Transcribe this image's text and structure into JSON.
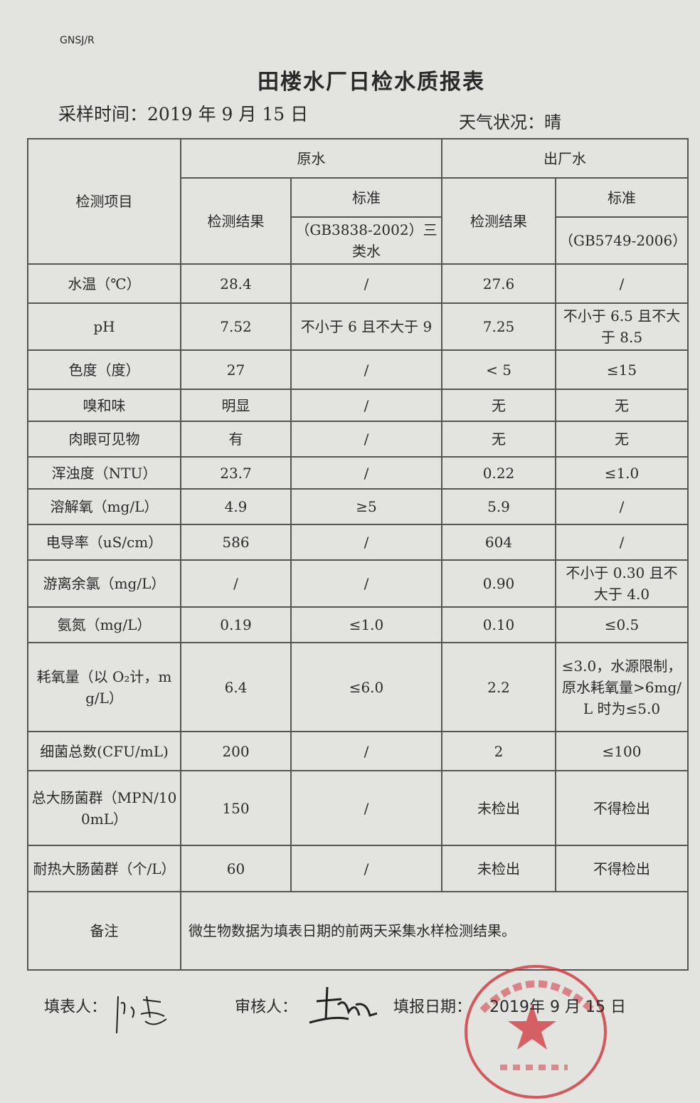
{
  "doc_code": "GNSJ/R",
  "title": "田楼水厂日检水质报表",
  "sampling_time": "采样时间：2019 年 9 月 15 日",
  "weather": "天气状况：晴",
  "table": {
    "header": {
      "item": "检测项目",
      "raw_water": "原水",
      "finished_water": "出厂水",
      "result": "检测结果",
      "standard": "标准",
      "raw_standard_ref": "（GB3838-2002）三类水",
      "finished_standard_ref": "（GB5749-2006）"
    },
    "rows": [
      {
        "item": "水温（℃）",
        "raw": "28.4",
        "raw_std": "/",
        "fin": "27.6",
        "fin_std": "/"
      },
      {
        "item": "pH",
        "raw": "7.52",
        "raw_std": "不小于 6 且不大于 9",
        "fin": "7.25",
        "fin_std": "不小于 6.5 且不大于 8.5"
      },
      {
        "item": "色度（度）",
        "raw": "27",
        "raw_std": "/",
        "fin": "< 5",
        "fin_std": "≤15"
      },
      {
        "item": "嗅和味",
        "raw": "明显",
        "raw_std": "/",
        "fin": "无",
        "fin_std": "无"
      },
      {
        "item": "肉眼可见物",
        "raw": "有",
        "raw_std": "/",
        "fin": "无",
        "fin_std": "无"
      },
      {
        "item": "浑浊度（NTU）",
        "raw": "23.7",
        "raw_std": "/",
        "fin": "0.22",
        "fin_std": "≤1.0"
      },
      {
        "item": "溶解氧（mg/L）",
        "raw": "4.9",
        "raw_std": "≥5",
        "fin": "5.9",
        "fin_std": "/"
      },
      {
        "item": "电导率（uS/cm）",
        "raw": "586",
        "raw_std": "/",
        "fin": "604",
        "fin_std": "/"
      },
      {
        "item": "游离余氯（mg/L）",
        "raw": "/",
        "raw_std": "/",
        "fin": "0.90",
        "fin_std": "不小于 0.30 且不大于 4.0"
      },
      {
        "item": "氨氮（mg/L）",
        "raw": "0.19",
        "raw_std": "≤1.0",
        "fin": "0.10",
        "fin_std": "≤0.5"
      },
      {
        "item": "耗氧量（以 O₂计，mg/L）",
        "raw": "6.4",
        "raw_std": "≤6.0",
        "fin": "2.2",
        "fin_std": "≤3.0，水源限制，原水耗氧量>6mg/L 时为≤5.0"
      },
      {
        "item": "细菌总数(CFU/mL)",
        "raw": "200",
        "raw_std": "/",
        "fin": "2",
        "fin_std": "≤100"
      },
      {
        "item": "总大肠菌群（MPN/100mL）",
        "raw": "150",
        "raw_std": "/",
        "fin": "未检出",
        "fin_std": "不得检出"
      },
      {
        "item": "耐热大肠菌群（个/L）",
        "raw": "60",
        "raw_std": "/",
        "fin": "未检出",
        "fin_std": "不得检出"
      }
    ],
    "remark_label": "备注",
    "remark": "微生物数据为填表日期的前两天采集水样检测结果。"
  },
  "footer": {
    "filled_by_label": "填表人：",
    "reviewer_label": "审核人：",
    "report_date_label": "填报日期：",
    "report_date": "2019年 9 月 15 日"
  },
  "stamp_color": "#d0343a"
}
